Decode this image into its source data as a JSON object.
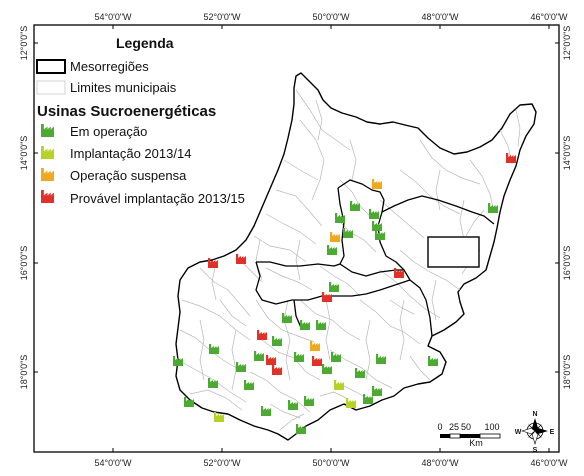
{
  "map": {
    "top_ticks": [
      "54°0'0\"W",
      "52°0'0\"W",
      "50°0'0\"W",
      "48°0'0\"W",
      "46°0'0\"W"
    ],
    "bottom_ticks": [
      "54°0'0\"W",
      "52°0'0\"W",
      "50°0'0\"W",
      "48°0'0\"W",
      "46°0'0\"W"
    ],
    "left_ticks": [
      "12°0'0\"S",
      "14°0'0\"S",
      "16°0'0\"S",
      "18°0'0\"S"
    ],
    "right_ticks": [
      "12°0'0\"S",
      "14°0'0\"S",
      "16°0'0\"S",
      "18°0'0\"S"
    ],
    "scale_labels": [
      "0",
      "25",
      "50",
      "100"
    ],
    "scale_unit": "Km",
    "compass": {
      "n": "N",
      "s": "S",
      "e": "E",
      "w": "W"
    }
  },
  "legend": {
    "title": "Legenda",
    "mesoregions": "Mesorregiões",
    "municipal": "Limites municipais",
    "plants_title": "Usinas Sucroenergéticas",
    "categories": [
      {
        "label": "Em operação",
        "color": "#4caa32"
      },
      {
        "label": "Implantação 2013/14",
        "color": "#b4d228"
      },
      {
        "label": "Operação suspensa",
        "color": "#f0a81e"
      },
      {
        "label": "Provável implantação 2013/15",
        "color": "#e03228"
      }
    ]
  }
}
